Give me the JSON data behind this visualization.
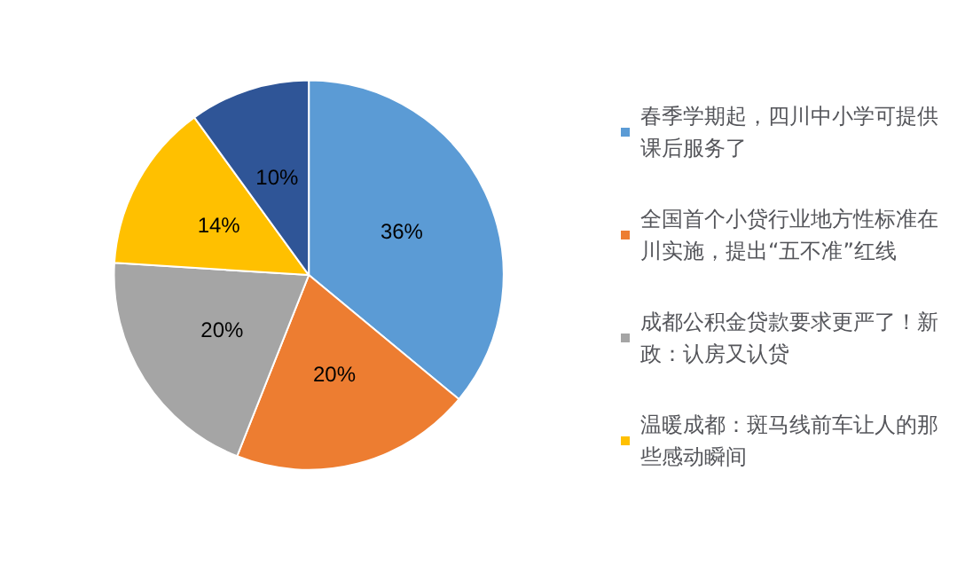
{
  "chart_data": {
    "type": "pie",
    "categories": [
      "春季学期起，四川中小学可提供课后服务了",
      "全国首个小贷行业地方性标准在川实施，提出“五不准”红线",
      "成都公积金贷款要求更严了！新政：认房又认贷",
      "温暖成都：斑马线前车让人的那些感动瞬间",
      null
    ],
    "values": [
      36,
      20,
      20,
      14,
      10
    ],
    "colors": [
      "#5b9bd5",
      "#ed7d31",
      "#a5a5a5",
      "#ffc000",
      "#2f5597"
    ],
    "value_labels": [
      "36%",
      "20%",
      "20%",
      "14%",
      "10%"
    ],
    "legend": "right"
  }
}
